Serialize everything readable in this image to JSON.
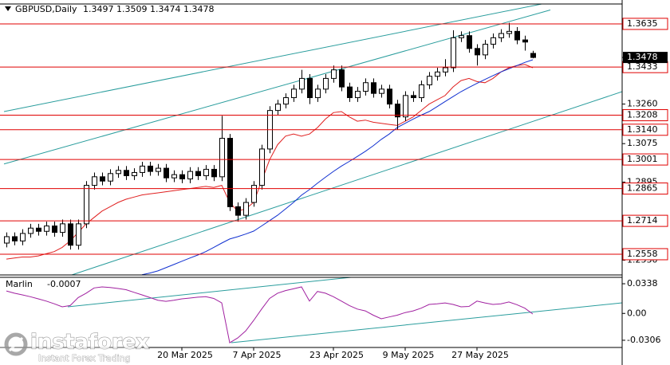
{
  "chart_data": {
    "type": "candlestick",
    "title": "GBPUSD,Daily",
    "categories": [
      null,
      null,
      null,
      null,
      null,
      null,
      null,
      null,
      null,
      null,
      null,
      null,
      null,
      null,
      null,
      null,
      null,
      null,
      null,
      null,
      null,
      null,
      "20 Mar 2025",
      null,
      null,
      null,
      null,
      null,
      null,
      null,
      null,
      "7 Apr 2025",
      null,
      null,
      null,
      null,
      null,
      null,
      null,
      null,
      null,
      "23 Apr 2025",
      null,
      null,
      null,
      null,
      null,
      null,
      null,
      null,
      "9 May 2025",
      null,
      null,
      null,
      null,
      null,
      null,
      null,
      null,
      "27 May 2025",
      null,
      null,
      null,
      null,
      null,
      null,
      null
    ],
    "open": [
      1.261,
      1.264,
      1.262,
      1.2655,
      1.268,
      1.2665,
      1.269,
      1.266,
      1.27,
      1.26,
      1.27,
      1.288,
      1.292,
      1.29,
      1.2935,
      1.295,
      1.2925,
      1.294,
      1.297,
      1.2945,
      1.296,
      1.2915,
      1.293,
      1.291,
      1.2945,
      1.2925,
      1.2955,
      1.292,
      1.31,
      1.278,
      1.274,
      1.28,
      1.288,
      1.305,
      1.323,
      1.326,
      1.329,
      1.333,
      1.338,
      1.329,
      1.333,
      1.338,
      1.342,
      1.334,
      1.329,
      1.332,
      1.336,
      1.331,
      1.333,
      1.326,
      1.32,
      1.33,
      1.329,
      1.335,
      1.339,
      1.341,
      1.343,
      1.357,
      1.358,
      1.352,
      1.349,
      1.354,
      1.357,
      1.359,
      1.36,
      1.356,
      1.3497
    ],
    "high": [
      1.266,
      1.266,
      1.2675,
      1.27,
      1.27,
      1.271,
      1.271,
      1.272,
      1.272,
      1.272,
      1.29,
      1.294,
      1.294,
      1.2955,
      1.297,
      1.297,
      1.296,
      1.299,
      1.299,
      1.298,
      1.298,
      1.295,
      1.295,
      1.2965,
      1.2965,
      1.2975,
      1.2975,
      1.3205,
      1.312,
      1.28,
      1.282,
      1.29,
      1.307,
      1.325,
      1.328,
      1.331,
      1.335,
      1.342,
      1.34,
      1.335,
      1.34,
      1.344,
      1.344,
      1.336,
      1.334,
      1.338,
      1.338,
      1.335,
      1.335,
      1.328,
      1.332,
      1.332,
      1.337,
      1.341,
      1.343,
      1.347,
      1.3605,
      1.36,
      1.36,
      1.354,
      1.356,
      1.359,
      1.361,
      1.364,
      1.362,
      1.358,
      1.3509
    ],
    "low": [
      1.259,
      1.26,
      1.26,
      1.2635,
      1.2645,
      1.2645,
      1.264,
      1.264,
      1.258,
      1.258,
      1.268,
      1.286,
      1.288,
      1.288,
      1.2915,
      1.2905,
      1.2905,
      1.292,
      1.2925,
      1.2925,
      1.2895,
      1.2895,
      1.289,
      1.289,
      1.2905,
      1.2905,
      1.29,
      1.29,
      1.276,
      1.271,
      1.272,
      1.278,
      1.286,
      1.303,
      1.321,
      1.324,
      1.327,
      1.331,
      1.326,
      1.327,
      1.331,
      1.336,
      1.332,
      1.327,
      1.327,
      1.33,
      1.329,
      1.329,
      1.324,
      1.314,
      1.318,
      1.327,
      1.327,
      1.333,
      1.337,
      1.339,
      1.341,
      1.355,
      1.35,
      1.344,
      1.347,
      1.352,
      1.355,
      1.357,
      1.354,
      1.351,
      1.3474
    ],
    "close": [
      1.264,
      1.262,
      1.2655,
      1.268,
      1.2665,
      1.269,
      1.266,
      1.27,
      1.26,
      1.27,
      1.288,
      1.292,
      1.29,
      1.2935,
      1.295,
      1.2925,
      1.294,
      1.297,
      1.2945,
      1.296,
      1.2915,
      1.293,
      1.291,
      1.2945,
      1.2925,
      1.2955,
      1.292,
      1.31,
      1.278,
      1.274,
      1.28,
      1.288,
      1.305,
      1.323,
      1.326,
      1.329,
      1.333,
      1.338,
      1.329,
      1.333,
      1.338,
      1.342,
      1.334,
      1.329,
      1.332,
      1.336,
      1.331,
      1.333,
      1.326,
      1.32,
      1.33,
      1.329,
      1.335,
      1.339,
      1.341,
      1.343,
      1.357,
      1.358,
      1.352,
      1.349,
      1.354,
      1.357,
      1.359,
      1.36,
      1.356,
      1.355,
      1.3478
    ],
    "candle_colors": {
      "up": "#ffffff",
      "down": "#000000",
      "outline": "#000000"
    },
    "ylim": [
      1.2461,
      1.3728
    ],
    "yticks": [
      {
        "value": 1.326,
        "label": "1.3260"
      },
      1.3075,
      1.2895,
      {
        "value": 1.253,
        "label": "1.2530"
      }
    ],
    "grid": false,
    "levels": {
      "color": "#e00000",
      "values": [
        1.3635,
        1.3433,
        1.3208,
        {
          "value": 1.314,
          "label": "1.3140"
        },
        1.3001,
        1.2865,
        1.2714,
        1.2558
      ]
    },
    "overlays": [
      {
        "color": "#e02020",
        "values": [
          1.2535,
          1.254,
          1.2545,
          1.2545,
          1.255,
          1.256,
          1.257,
          1.259,
          1.262,
          1.266,
          1.27,
          1.273,
          1.276,
          1.278,
          1.28,
          1.2815,
          1.2825,
          1.2835,
          1.284,
          1.2845,
          1.285,
          1.2855,
          1.286,
          1.2865,
          1.287,
          1.2875,
          1.287,
          1.288,
          1.28,
          1.276,
          1.277,
          1.28,
          1.29,
          1.3,
          1.307,
          1.311,
          1.312,
          1.311,
          1.312,
          1.315,
          1.319,
          1.322,
          1.3225,
          1.32,
          1.318,
          1.3185,
          1.3175,
          1.317,
          1.3165,
          1.316,
          1.318,
          1.32,
          1.323,
          1.326,
          1.328,
          1.33,
          1.334,
          1.337,
          1.338,
          1.3365,
          1.336,
          1.338,
          1.341,
          1.343,
          1.344,
          1.3445,
          1.343
        ]
      },
      {
        "color": "#1030d0",
        "values": [
          null,
          null,
          null,
          null,
          null,
          null,
          null,
          null,
          null,
          null,
          null,
          null,
          null,
          null,
          null,
          null,
          null,
          1.2462,
          1.247,
          1.248,
          1.2495,
          1.251,
          1.2525,
          1.254,
          1.2554,
          1.257,
          1.259,
          1.261,
          1.2629,
          1.264,
          1.2652,
          1.2666,
          1.269,
          1.2715,
          1.274,
          1.277,
          1.28,
          1.2834,
          1.286,
          1.289,
          1.2918,
          1.2945,
          1.297,
          1.2992,
          1.3015,
          1.3039,
          1.3065,
          1.3095,
          1.312,
          1.315,
          1.317,
          1.319,
          1.3208,
          1.3225,
          1.3248,
          1.3272,
          1.3295,
          1.3318,
          1.3338,
          1.3357,
          1.3375,
          1.3393,
          1.341,
          1.3425,
          1.344,
          1.3455,
          1.3467
        ]
      }
    ],
    "trendlines": [
      {
        "color": "#2a9d9d",
        "x": [
          -0.3,
          68.2
        ],
        "values": [
          1.3225,
          1.3736
        ]
      },
      {
        "color": "#2a9d9d",
        "x": [
          -0.3,
          68.2
        ],
        "values": [
          1.298,
          1.37
        ]
      },
      {
        "color": "#2a9d9d",
        "x": [
          8.2,
          77.2
        ],
        "values": [
          1.2461,
          1.3318
        ]
      }
    ],
    "indicator": {
      "name": "Marlin",
      "color": "#a020a0",
      "values": [
        0.0256,
        0.023,
        0.0211,
        0.019,
        0.0166,
        0.014,
        0.011,
        0.0075,
        0.009,
        0.018,
        0.023,
        0.029,
        0.0302,
        0.0295,
        0.0284,
        0.027,
        0.024,
        0.0211,
        0.018,
        0.015,
        0.0138,
        0.015,
        0.0166,
        0.0175,
        0.0185,
        0.019,
        0.017,
        0.012,
        -0.0334,
        -0.028,
        -0.02,
        -0.008,
        0.005,
        0.017,
        0.023,
        0.026,
        0.028,
        0.0302,
        0.014,
        0.025,
        0.023,
        0.019,
        0.014,
        0.009,
        0.005,
        0.0029,
        -0.002,
        -0.0061,
        -0.004,
        -0.002,
        0.001,
        0.0029,
        0.006,
        0.0102,
        0.011,
        0.012,
        0.0102,
        0.0075,
        0.008,
        0.014,
        0.012,
        0.0102,
        0.011,
        0.013,
        0.01,
        0.006,
        -0.0007
      ],
      "ylim": [
        -0.0388,
        0.0411
      ],
      "yticks": [
        0.0338,
        {
          "value": 0,
          "label": "0.00"
        },
        -0.0306
      ],
      "trendlines": [
        {
          "color": "#2a9d9d",
          "x": [
            7.7,
            43.2
          ],
          "values": [
            0.0075,
            0.0411
          ]
        },
        {
          "color": "#2a9d9d",
          "x": [
            28.2,
            77.2
          ],
          "values": [
            -0.0334,
            0.012
          ]
        }
      ]
    },
    "watermark": {
      "brand": "instaforex",
      "slogan": "Instant Forex Trading"
    }
  }
}
